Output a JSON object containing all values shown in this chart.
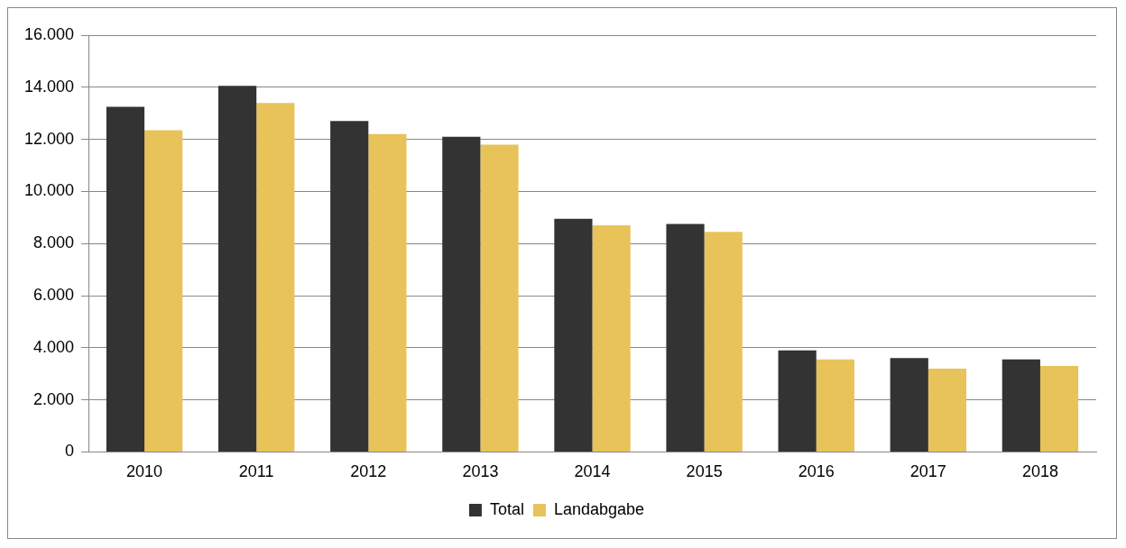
{
  "chart_data": {
    "type": "bar",
    "categories": [
      "2010",
      "2011",
      "2012",
      "2013",
      "2014",
      "2015",
      "2016",
      "2017",
      "2018"
    ],
    "series": [
      {
        "name": "Total",
        "color": "#333333",
        "values": [
          13250,
          14050,
          12700,
          12100,
          8950,
          8750,
          3900,
          3600,
          3550
        ]
      },
      {
        "name": "Landabgabe",
        "color": "#e8c35a",
        "values": [
          12350,
          13400,
          12200,
          11800,
          8700,
          8450,
          3550,
          3200,
          3300
        ]
      }
    ],
    "ylim": [
      0,
      16000
    ],
    "yticks": [
      {
        "value": 0,
        "label": "0"
      },
      {
        "value": 2000,
        "label": "2.000"
      },
      {
        "value": 4000,
        "label": "4.000"
      },
      {
        "value": 6000,
        "label": "6.000"
      },
      {
        "value": 8000,
        "label": "8.000"
      },
      {
        "value": 10000,
        "label": "10.000"
      },
      {
        "value": 12000,
        "label": "12.000"
      },
      {
        "value": 14000,
        "label": "14.000"
      },
      {
        "value": 16000,
        "label": "16.000"
      }
    ],
    "grid": "y",
    "legend": "bottom"
  }
}
